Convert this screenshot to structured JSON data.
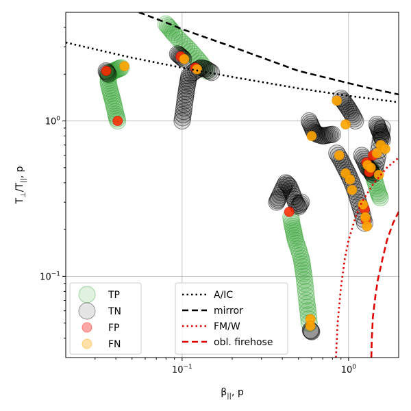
{
  "chart_data": {
    "type": "scatter",
    "xlabel_main": "β",
    "xlabel_sub": "||",
    "xlabel_rest": ", p",
    "ylabel_main": "T",
    "ylabel_sub1": "⊥",
    "ylabel_mid": "/T",
    "ylabel_sub2": "||",
    "ylabel_rest": ", p",
    "x_scale": "log",
    "y_scale": "log",
    "xlim": [
      0.02,
      2.0
    ],
    "ylim": [
      0.03,
      5.0
    ],
    "grid": true,
    "x_ticks": [
      {
        "value": 0.1,
        "base": "10",
        "exp": "−1"
      },
      {
        "value": 1.0,
        "base": "10",
        "exp": "0"
      }
    ],
    "y_ticks": [
      {
        "value": 0.1,
        "base": "10",
        "exp": "−1"
      },
      {
        "value": 1.0,
        "base": "10",
        "exp": "0"
      }
    ],
    "legend_placement": "lower-left and lower-center",
    "legend_markers": [
      {
        "label": "TP",
        "color": "#2ca02c",
        "marker": "circle-large",
        "alpha": 0.15
      },
      {
        "label": "TN",
        "color": "#000000",
        "marker": "circle-large",
        "alpha": 0.1
      },
      {
        "label": "FP",
        "color": "#ff0000",
        "marker": "circle",
        "alpha": 0.35
      },
      {
        "label": "FN",
        "color": "#ffa500",
        "marker": "circle",
        "alpha": 0.35
      }
    ],
    "legend_lines": [
      {
        "label": "A/IC",
        "color": "#000000",
        "dash": "dotted"
      },
      {
        "label": "mirror",
        "color": "#000000",
        "dash": "dashed"
      },
      {
        "label": "FM/W",
        "color": "#e00000",
        "dash": "dotted"
      },
      {
        "label": "obl. firehose",
        "color": "#e00000",
        "dash": "dashed"
      }
    ],
    "threshold_curves": [
      {
        "name": "A/IC",
        "color": "#000000",
        "dash": "dotted",
        "x": [
          0.02,
          0.05,
          0.1,
          0.2,
          0.5,
          1.0,
          2.0
        ],
        "y": [
          3.2,
          2.55,
          2.2,
          1.92,
          1.62,
          1.45,
          1.32
        ]
      },
      {
        "name": "mirror",
        "color": "#000000",
        "dash": "dashed",
        "x": [
          0.055,
          0.08,
          0.1,
          0.2,
          0.5,
          1.0,
          1.5,
          2.0
        ],
        "y": [
          5.0,
          4.3,
          3.9,
          3.0,
          2.1,
          1.75,
          1.58,
          1.48
        ]
      },
      {
        "name": "FM/W",
        "color": "#e00000",
        "dash": "dotted",
        "x": [
          0.84,
          0.86,
          0.9,
          0.95,
          1.0,
          1.1,
          1.2,
          1.4,
          1.7,
          2.0
        ],
        "y": [
          0.03,
          0.05,
          0.085,
          0.13,
          0.17,
          0.24,
          0.3,
          0.39,
          0.5,
          0.58
        ]
      },
      {
        "name": "obl. firehose",
        "color": "#e00000",
        "dash": "dashed",
        "x": [
          1.37,
          1.38,
          1.4,
          1.45,
          1.5,
          1.6,
          1.7,
          1.85,
          2.0
        ],
        "y": [
          0.03,
          0.04,
          0.055,
          0.075,
          0.095,
          0.13,
          0.17,
          0.22,
          0.26
        ]
      }
    ],
    "tracks": [
      {
        "cls": "TP",
        "x": [
          0.041,
          0.04,
          0.039,
          0.038,
          0.037,
          0.036,
          0.036,
          0.037,
          0.039,
          0.041,
          0.043
        ],
        "y": [
          1.0,
          1.1,
          1.25,
          1.4,
          1.55,
          1.75,
          1.95,
          2.05,
          2.1,
          2.15,
          2.2
        ]
      },
      {
        "cls": "TP",
        "x": [
          0.08,
          0.085,
          0.09,
          0.1,
          0.11,
          0.12,
          0.13,
          0.14
        ],
        "y": [
          4.2,
          3.9,
          3.6,
          3.2,
          2.9,
          2.6,
          2.35,
          2.1
        ]
      },
      {
        "cls": "TP",
        "x": [
          0.45,
          0.46,
          0.47,
          0.48,
          0.5,
          0.52,
          0.53,
          0.54,
          0.55,
          0.56,
          0.57,
          0.58
        ],
        "y": [
          0.24,
          0.21,
          0.19,
          0.17,
          0.15,
          0.13,
          0.115,
          0.1,
          0.085,
          0.07,
          0.06,
          0.05
        ]
      },
      {
        "cls": "TP",
        "x": [
          1.35,
          1.4,
          1.45,
          1.5,
          1.55
        ],
        "y": [
          0.5,
          0.45,
          0.4,
          0.35,
          0.32
        ]
      },
      {
        "cls": "TN",
        "x": [
          0.1,
          0.102,
          0.104,
          0.106,
          0.108,
          0.11,
          0.12,
          0.13,
          0.14,
          0.15
        ],
        "y": [
          1.0,
          1.15,
          1.35,
          1.55,
          1.75,
          1.95,
          2.1,
          2.2,
          2.15,
          2.05
        ]
      },
      {
        "cls": "TN",
        "x": [
          0.094,
          0.098,
          0.102
        ],
        "y": [
          2.7,
          2.6,
          2.5
        ]
      },
      {
        "cls": "TN",
        "x": [
          0.035,
          0.036
        ],
        "y": [
          2.1,
          2.0
        ]
      },
      {
        "cls": "TN",
        "x": [
          0.37,
          0.38,
          0.4,
          0.42,
          0.44,
          0.46,
          0.48,
          0.5,
          0.52
        ],
        "y": [
          0.3,
          0.32,
          0.36,
          0.4,
          0.38,
          0.34,
          0.3,
          0.28,
          0.3
        ]
      },
      {
        "cls": "TN",
        "x": [
          0.59,
          0.6
        ],
        "y": [
          0.045,
          0.044
        ]
      },
      {
        "cls": "TN",
        "x": [
          0.58,
          0.6,
          0.62,
          0.65,
          0.7,
          0.75,
          0.8
        ],
        "y": [
          1.0,
          0.92,
          0.85,
          0.82,
          0.8,
          0.81,
          0.82
        ]
      },
      {
        "cls": "TN",
        "x": [
          0.85,
          0.9,
          0.95,
          1.0,
          1.05,
          1.1,
          1.15,
          1.2,
          1.25
        ],
        "y": [
          0.62,
          0.56,
          0.5,
          0.45,
          0.4,
          0.35,
          0.3,
          0.26,
          0.22
        ]
      },
      {
        "cls": "TN",
        "x": [
          0.9,
          0.95,
          1.0,
          1.05,
          1.1
        ],
        "y": [
          1.4,
          1.3,
          1.2,
          1.1,
          1.0
        ]
      },
      {
        "cls": "TN",
        "x": [
          1.2,
          1.25,
          1.3,
          1.35,
          1.4,
          1.45,
          1.5,
          1.55,
          1.6
        ],
        "y": [
          0.6,
          0.55,
          0.5,
          0.48,
          0.45,
          0.5,
          0.6,
          0.75,
          0.9
        ]
      },
      {
        "cls": "TN",
        "x": [
          1.48,
          1.52,
          1.56,
          1.6
        ],
        "y": [
          0.95,
          0.88,
          0.82,
          0.76
        ]
      }
    ],
    "fp_points": [
      {
        "x": 0.041,
        "y": 1.0
      },
      {
        "x": 0.035,
        "y": 2.1
      },
      {
        "x": 0.098,
        "y": 2.6
      },
      {
        "x": 0.12,
        "y": 2.2
      },
      {
        "x": 0.44,
        "y": 0.26
      },
      {
        "x": 1.28,
        "y": 0.54
      },
      {
        "x": 1.33,
        "y": 0.47
      },
      {
        "x": 1.25,
        "y": 0.27
      },
      {
        "x": 1.27,
        "y": 0.23
      },
      {
        "x": 1.4,
        "y": 0.6
      }
    ],
    "fn_points": [
      {
        "x": 0.045,
        "y": 2.25
      },
      {
        "x": 0.103,
        "y": 2.5
      },
      {
        "x": 0.123,
        "y": 2.15
      },
      {
        "x": 0.6,
        "y": 0.8
      },
      {
        "x": 0.59,
        "y": 0.053
      },
      {
        "x": 0.59,
        "y": 0.048
      },
      {
        "x": 0.85,
        "y": 1.35
      },
      {
        "x": 0.96,
        "y": 0.95
      },
      {
        "x": 0.88,
        "y": 0.6
      },
      {
        "x": 0.96,
        "y": 0.46
      },
      {
        "x": 1.02,
        "y": 0.42
      },
      {
        "x": 1.05,
        "y": 0.36
      },
      {
        "x": 1.22,
        "y": 0.29
      },
      {
        "x": 1.26,
        "y": 0.24
      },
      {
        "x": 1.29,
        "y": 0.21
      },
      {
        "x": 1.3,
        "y": 0.52
      },
      {
        "x": 1.36,
        "y": 0.5
      },
      {
        "x": 1.48,
        "y": 0.62
      },
      {
        "x": 1.56,
        "y": 0.7
      },
      {
        "x": 1.66,
        "y": 0.66
      },
      {
        "x": 1.52,
        "y": 0.45
      }
    ]
  }
}
